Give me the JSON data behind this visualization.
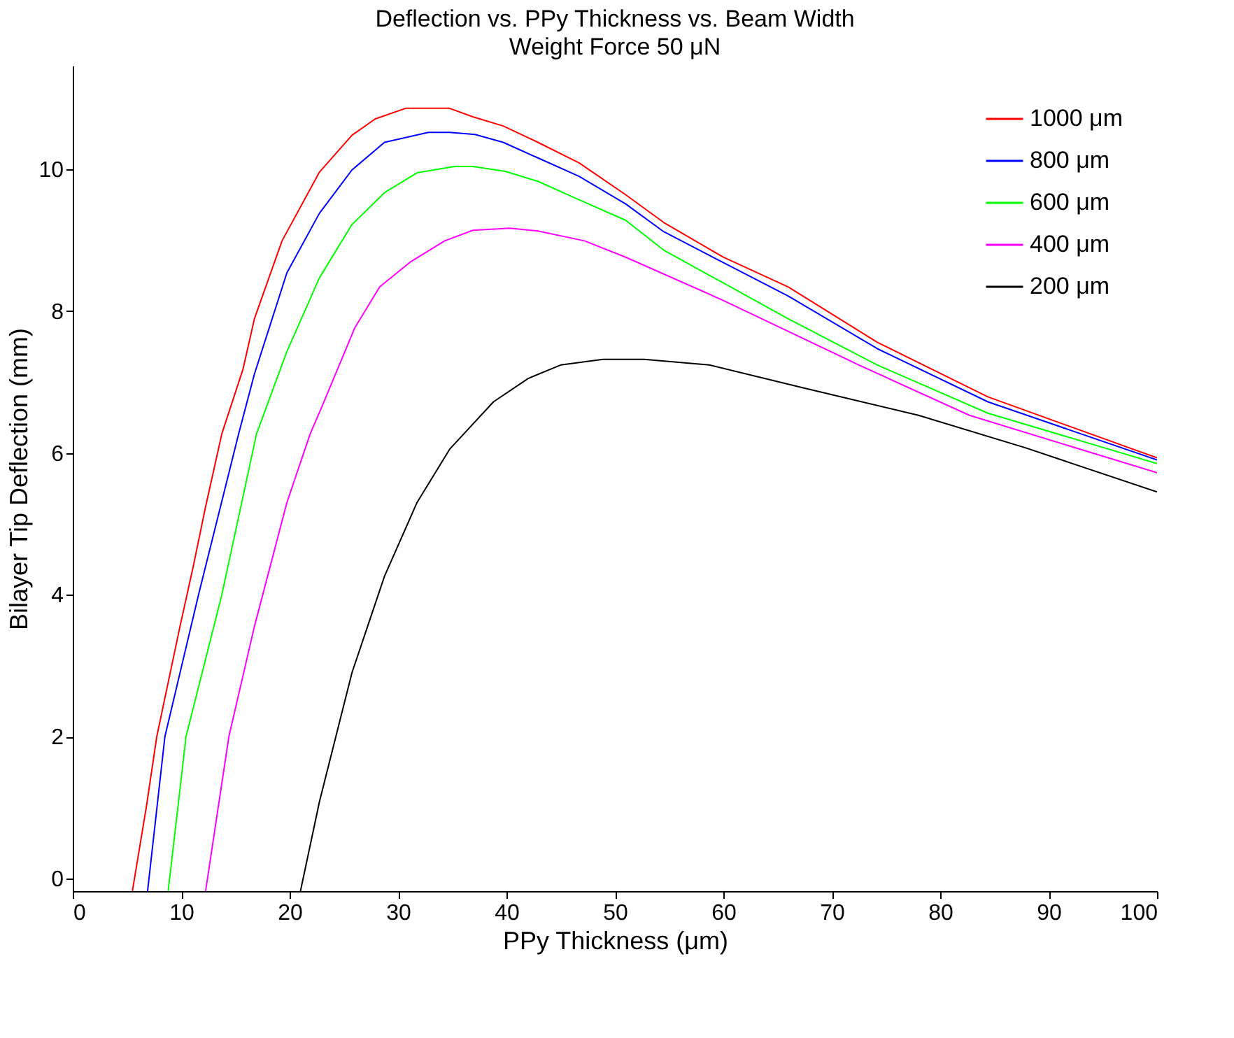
{
  "chart_data": {
    "type": "line",
    "title": "Deflection vs. PPy Thickness vs. Beam Width",
    "subtitle": "Weight Force 50 μN",
    "xlabel": "PPy Thickness (μm)",
    "ylabel": "Bilayer Tip Deflection (mm)",
    "xlim": [
      0,
      100
    ],
    "xticks": [
      0,
      10,
      20,
      30,
      40,
      50,
      60,
      70,
      80,
      90,
      100
    ],
    "ylim": [
      -0.18,
      11.46
    ],
    "yticks": [
      0,
      2,
      4,
      6,
      8,
      10
    ],
    "grid": false,
    "legend": "top right",
    "marker": "none",
    "line_style": "solid",
    "series": [
      {
        "name": "1000 μm",
        "color": "#ff0000",
        "x": [
          5.5,
          6.8,
          7.75,
          9.9,
          11.1,
          12.25,
          13.75,
          15.7,
          16.75,
          19.3,
          22.75,
          25.75,
          27.9,
          30.7,
          34.75,
          36.9,
          39.7,
          42.9,
          46.7,
          51.0,
          54.5,
          60.0,
          66.0,
          74.2,
          84.4,
          100
        ],
        "values": [
          -0.18,
          1.02,
          2.0,
          3.56,
          4.39,
          5.24,
          6.27,
          7.18,
          7.89,
          8.99,
          9.96,
          10.48,
          10.71,
          10.86,
          10.86,
          10.74,
          10.61,
          10.38,
          10.09,
          9.64,
          9.25,
          8.76,
          8.34,
          7.56,
          6.79,
          5.93
        ]
      },
      {
        "name": "800 μm",
        "color": "#0000ff",
        "x": [
          6.9,
          8.5,
          11.6,
          15.3,
          16.75,
          19.75,
          22.75,
          25.75,
          28.75,
          32.8,
          34.75,
          37.1,
          39.7,
          42.9,
          46.7,
          51.0,
          54.5,
          66.0,
          74.2,
          84.4,
          100
        ],
        "values": [
          -0.18,
          2.0,
          4.0,
          6.27,
          7.11,
          8.54,
          9.38,
          9.99,
          10.38,
          10.52,
          10.52,
          10.49,
          10.38,
          10.16,
          9.9,
          9.51,
          9.12,
          8.21,
          7.47,
          6.72,
          5.9
        ]
      },
      {
        "name": "600 μm",
        "color": "#00ff00",
        "x": [
          8.8,
          10.45,
          13.75,
          16.95,
          19.75,
          22.75,
          25.75,
          28.75,
          31.75,
          35.2,
          36.9,
          39.9,
          42.9,
          46.7,
          51.0,
          54.5,
          66.0,
          74.2,
          84.4,
          100
        ],
        "values": [
          -0.18,
          2.0,
          4.0,
          6.27,
          7.43,
          8.47,
          9.22,
          9.67,
          9.95,
          10.04,
          10.04,
          9.97,
          9.83,
          9.57,
          9.28,
          8.86,
          7.89,
          7.24,
          6.56,
          5.85
        ]
      },
      {
        "name": "400 μm",
        "color": "#ff00ff",
        "x": [
          12.25,
          14.4,
          16.75,
          19.75,
          21.9,
          23.0,
          26.0,
          28.3,
          31.2,
          34.3,
          36.9,
          40.3,
          42.9,
          47.2,
          51.0,
          60.0,
          72.5,
          82.7,
          100
        ],
        "values": [
          -0.18,
          2.0,
          3.55,
          5.3,
          6.27,
          6.66,
          7.76,
          8.34,
          8.7,
          8.99,
          9.14,
          9.17,
          9.13,
          8.99,
          8.76,
          8.15,
          7.24,
          6.53,
          5.72
        ]
      },
      {
        "name": "200 μm",
        "color": "#000000",
        "x": [
          21.0,
          22.75,
          25.75,
          28.75,
          31.75,
          34.75,
          38.8,
          42.0,
          45.0,
          48.9,
          52.7,
          58.7,
          67.3,
          78.0,
          87.9,
          100
        ],
        "values": [
          -0.18,
          1.08,
          2.9,
          4.26,
          5.3,
          6.05,
          6.72,
          7.05,
          7.24,
          7.32,
          7.32,
          7.24,
          6.92,
          6.53,
          6.07,
          5.45
        ]
      }
    ]
  }
}
